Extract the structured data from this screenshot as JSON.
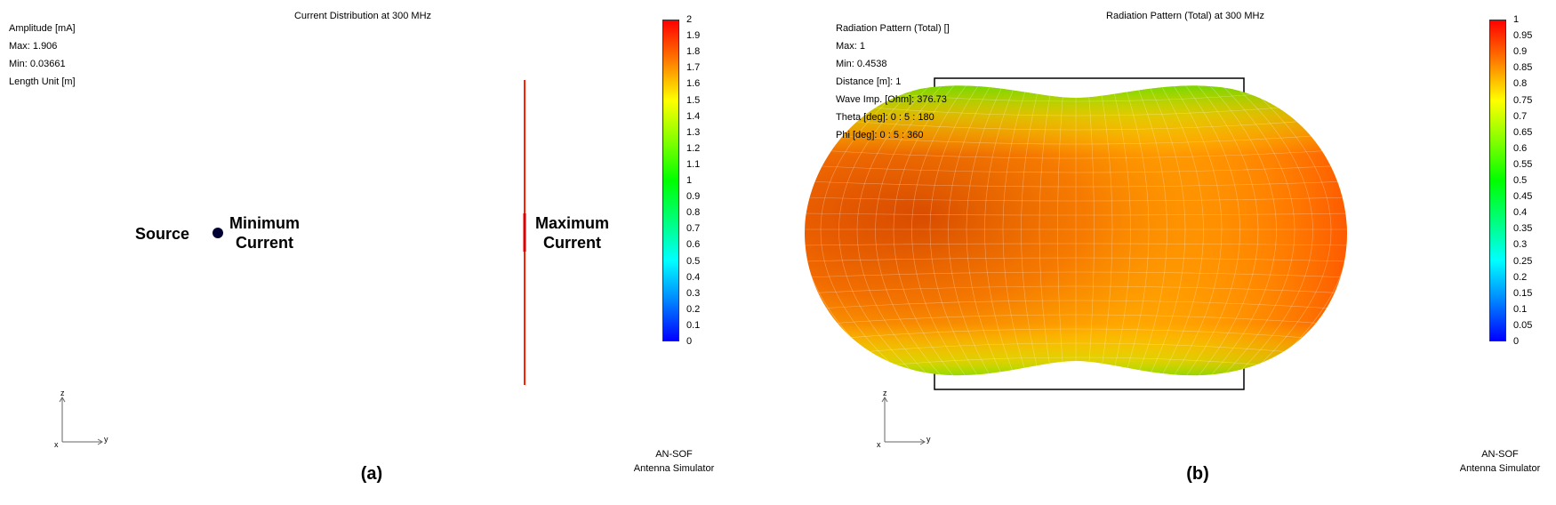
{
  "panel_a": {
    "title": "Current Distribution at 300 MHz",
    "info": [
      "Amplitude [mA]",
      "Max: 1.906",
      "Min: 0.03661",
      "Length Unit [m]"
    ],
    "colorbar_ticks": [
      "2",
      "1.9",
      "1.8",
      "1.7",
      "1.6",
      "1.5",
      "1.4",
      "1.3",
      "1.2",
      "1.1",
      "1",
      "0.9",
      "0.8",
      "0.7",
      "0.6",
      "0.5",
      "0.4",
      "0.3",
      "0.2",
      "0.1",
      "0"
    ],
    "annotations": {
      "source": "Source",
      "min_current": "Minimum\nCurrent",
      "max_current": "Maximum\nCurrent"
    },
    "axes": {
      "z": "z",
      "y": "y",
      "x": "x"
    },
    "credit": [
      "AN-SOF",
      "Antenna Simulator"
    ],
    "label": "(a)"
  },
  "panel_b": {
    "title": "Radiation Pattern (Total) at 300 MHz",
    "info": [
      "Radiation Pattern (Total) []",
      "Max: 1",
      "Min: 0.4538",
      "Distance [m]: 1",
      "Wave Imp. [Ohm]: 376.73",
      "Theta [deg]: 0 : 5 : 180",
      "Phi [deg]: 0 : 5 : 360"
    ],
    "colorbar_ticks": [
      "1",
      "0.95",
      "0.9",
      "0.85",
      "0.8",
      "0.75",
      "0.7",
      "0.65",
      "0.6",
      "0.55",
      "0.5",
      "0.45",
      "0.4",
      "0.35",
      "0.3",
      "0.25",
      "0.2",
      "0.15",
      "0.1",
      "0.05",
      "0"
    ],
    "axes": {
      "z": "z",
      "y": "y",
      "x": "x"
    },
    "credit": [
      "AN-SOF",
      "Antenna Simulator"
    ],
    "label": "(b)"
  }
}
